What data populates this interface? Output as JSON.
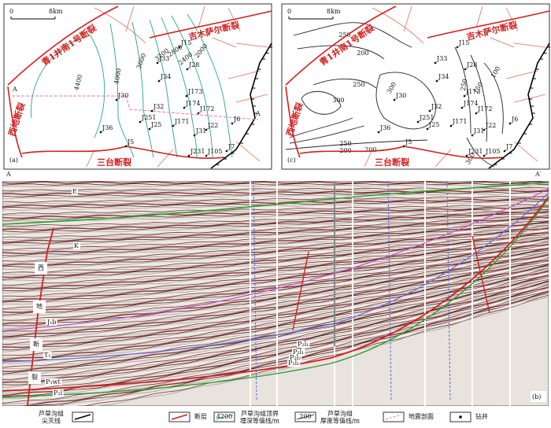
{
  "scale_bar": {
    "start": "0",
    "end": "8km"
  },
  "faults": {
    "qing1": "青1井南1号断裂",
    "jimusaer": "吉木萨尔断裂",
    "xidi": "西地断裂",
    "santai": "三台断裂"
  },
  "section_line": {
    "start": "A",
    "end": "A"
  },
  "wells": [
    "J15",
    "J28",
    "J33",
    "J34",
    "J30",
    "J32",
    "J174",
    "J173",
    "J172",
    "J251",
    "J25",
    "J171",
    "J22",
    "J6",
    "J36",
    "J5",
    "J31",
    "J231",
    "J105",
    "J7"
  ],
  "map_a": {
    "label": "(a)",
    "contours": [
      4400,
      4000,
      3600,
      3200,
      2800,
      2400,
      2000
    ]
  },
  "map_c": {
    "label": "(c)",
    "contours": [
      250,
      200,
      250,
      300,
      300,
      200,
      250,
      200,
      250,
      150,
      100,
      300
    ]
  },
  "section": {
    "label": "(b)",
    "start": "A",
    "end": "A′",
    "fault_name": [
      "西",
      "地",
      "断",
      "裂"
    ],
    "horizons": [
      "E",
      "K",
      "J₁b",
      "T₁",
      "P₃wt",
      "P₂l",
      "P₂l₁",
      "P₂l₁",
      "P₂l₂",
      "P₂l₁"
    ]
  },
  "legend": [
    {
      "lines": [
        "芦草沟组",
        "尖灭线"
      ]
    },
    {
      "lines": [
        "断层"
      ]
    },
    {
      "sample": "4200",
      "lines": [
        "芦草沟组顶界",
        "埋深等值线/m"
      ]
    },
    {
      "sample": "200",
      "lines": [
        "芦草沟组",
        "厚度等值线/m"
      ]
    },
    {
      "lines": [
        "地震剖面"
      ]
    },
    {
      "lines": [
        "钻井"
      ]
    }
  ]
}
